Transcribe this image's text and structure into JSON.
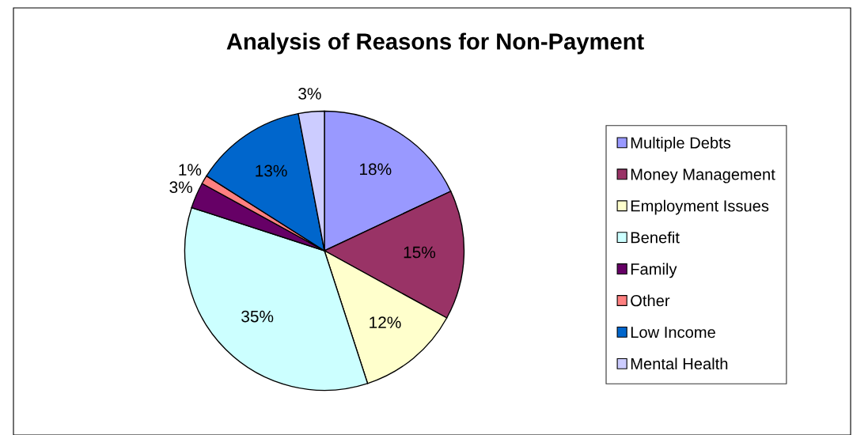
{
  "chart_data": {
    "type": "pie",
    "title": "Analysis of Reasons for Non-Payment",
    "categories": [
      "Multiple Debts",
      "Money Management",
      "Employment Issues",
      "Benefit",
      "Family",
      "Other",
      "Low Income",
      "Mental Health"
    ],
    "values": [
      18,
      15,
      12,
      35,
      3,
      1,
      13,
      3
    ],
    "value_labels": [
      "18%",
      "15%",
      "12%",
      "35%",
      "3%",
      "1%",
      "13%",
      "3%"
    ],
    "colors": [
      "#9999ff",
      "#993366",
      "#ffffcc",
      "#ccffff",
      "#660066",
      "#ff8080",
      "#0066cc",
      "#ccccff"
    ],
    "legend": "right"
  }
}
